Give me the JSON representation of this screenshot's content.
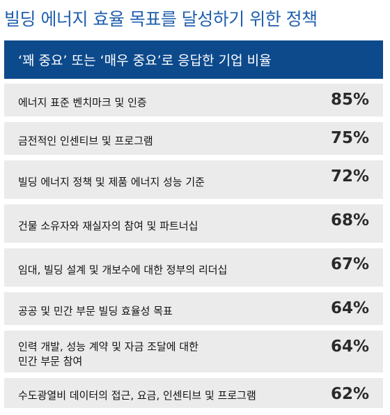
{
  "title": "빌딩 에너지 효율 목표를 달성하기 위한 정책",
  "banner": "‘꽤 중요’ 또는 ‘매우 중요’로 응답한 기업 비율",
  "chart_data": {
    "type": "table",
    "title": "빌딩 에너지 효율 목표를 달성하기 위한 정책",
    "subtitle": "‘꽤 중요’ 또는 ‘매우 중요’로 응답한 기업 비율",
    "rows": [
      {
        "label": "에너지 표준 벤치마크 및 인증",
        "value": 85,
        "display": "85%"
      },
      {
        "label": "금전적인 인센티브 및 프로그램",
        "value": 75,
        "display": "75%"
      },
      {
        "label": "빌딩 에너지 정책 및 제품 에너지 성능 기준",
        "value": 72,
        "display": "72%"
      },
      {
        "label": "건물 소유자와 재실자의 참여 및 파트너십",
        "value": 68,
        "display": "68%"
      },
      {
        "label": "임대, 빌딩 설계 및 개보수에 대한 정부의 리더십",
        "value": 67,
        "display": "67%"
      },
      {
        "label": "공공 및 민간 부문 빌딩 효율성 목표",
        "value": 64,
        "display": "64%"
      },
      {
        "label": "인력 개발, 성능 계약 및 자금 조달에 대한\n민간 부문 참여",
        "value": 64,
        "display": "64%"
      },
      {
        "label": "수도광열비 데이터의 접근, 요금, 인센티브 및 프로그램",
        "value": 62,
        "display": "62%"
      }
    ]
  }
}
